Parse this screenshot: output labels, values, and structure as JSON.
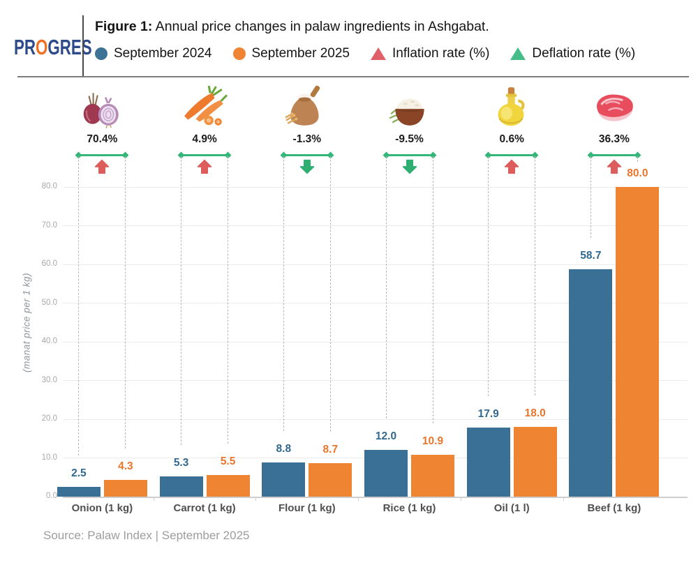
{
  "header": {
    "logo": {
      "pr": "PR",
      "o": "O",
      "gres": "GRES"
    },
    "title_prefix": "Figure 1:",
    "title_rest": " Annual price changes in palaw ingredients in Ashgabat.",
    "legend": [
      {
        "label": "September 2024",
        "marker": "circle",
        "color": "#3e7295"
      },
      {
        "label": "September 2025",
        "marker": "circle",
        "color": "#ee8434"
      },
      {
        "label": "Inflation rate (%)",
        "marker": "triangle",
        "color": "#e0606a"
      },
      {
        "label": "Deflation rate (%)",
        "marker": "triangle",
        "color": "#45bd88"
      }
    ]
  },
  "colors": {
    "inflation_arrow": "#dd5c5c",
    "deflation_arrow": "#2fae72",
    "bracket": "#33b678",
    "logo_navy": "#2d4a8a",
    "logo_orange": "#f26f21"
  },
  "chart_data": {
    "type": "bar",
    "title": "Annual price changes in palaw ingredients in Ashgabat",
    "categories": [
      "Onion (1 kg)",
      "Carrot (1 kg)",
      "Flour (1 kg)",
      "Rice (1 kg)",
      "Oil (1 l)",
      "Beef (1 kg)"
    ],
    "icons": [
      "onion",
      "carrot",
      "flour",
      "rice",
      "oil",
      "beef"
    ],
    "series": [
      {
        "name": "September 2024",
        "color": "#3a7096",
        "label_color": "#31688f",
        "values": [
          2.5,
          5.3,
          8.8,
          12.0,
          17.9,
          58.7
        ]
      },
      {
        "name": "September 2025",
        "color": "#ef8432",
        "label_color": "#e9752c",
        "values": [
          4.3,
          5.5,
          8.7,
          10.9,
          18.0,
          80.0
        ]
      }
    ],
    "change_pct": [
      {
        "value": "70.4%",
        "direction": "up"
      },
      {
        "value": "4.9%",
        "direction": "up"
      },
      {
        "value": "-1.3%",
        "direction": "down"
      },
      {
        "value": "-9.5%",
        "direction": "down"
      },
      {
        "value": "0.6%",
        "direction": "up"
      },
      {
        "value": "36.3%",
        "direction": "up"
      }
    ],
    "ylabel": "(manat price per 1 kg)",
    "ylim": [
      0,
      80
    ],
    "ytick_step": 10,
    "grid": true,
    "legend_position": "top"
  },
  "footer": {
    "source": "Source: Palaw Index | September 2025"
  }
}
